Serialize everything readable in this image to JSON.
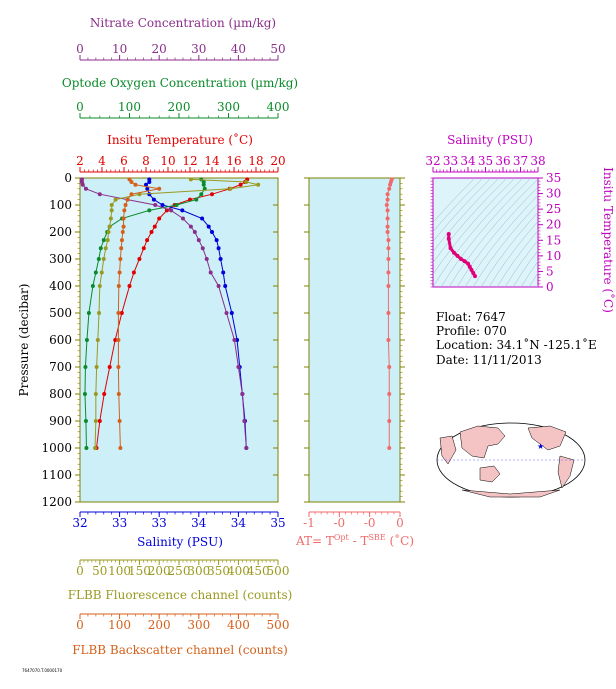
{
  "colors": {
    "nitrate": "#8b2e8b",
    "oxygen": "#0a8a2a",
    "temperature": "#e00000",
    "salinity": "#0000dd",
    "fluorescence": "#9a9a20",
    "backscatter": "#d4601a",
    "at": "#f06a6a",
    "ts": "#c000c0",
    "panel_bg": "#cdeff7",
    "panel_border": "#808000",
    "ts_bg": "#dcf4fa"
  },
  "axes": {
    "nitrate": {
      "title": "Nitrate Concentration (µm/kg)",
      "ticks": [
        "0",
        "10",
        "20",
        "30",
        "40",
        "50"
      ],
      "range": [
        0,
        50
      ]
    },
    "oxygen": {
      "title": "Optode Oxygen Concentration (µm/kg)",
      "ticks": [
        "0",
        "100",
        "200",
        "300",
        "400"
      ],
      "range": [
        0,
        400
      ]
    },
    "temperature": {
      "title": "Insitu Temperature (˚C)",
      "ticks": [
        "2",
        "4",
        "6",
        "8",
        "10",
        "12",
        "14",
        "16",
        "18",
        "20"
      ],
      "range": [
        2,
        20
      ]
    },
    "salinity": {
      "title": "Salinity (PSU)",
      "ticks": [
        "32",
        "33",
        "33",
        "34",
        "34",
        "35"
      ],
      "range": [
        32,
        35
      ]
    },
    "pressure": {
      "title": "Pressure (decibar)",
      "ticks": [
        "0",
        "100",
        "200",
        "300",
        "400",
        "500",
        "600",
        "700",
        "800",
        "900",
        "1000",
        "1100",
        "1200"
      ],
      "range": [
        0,
        1200
      ]
    },
    "fluorescence": {
      "title": "FLBB Fluorescence channel (counts)",
      "ticks": [
        "0",
        "50",
        "100",
        "150",
        "200",
        "250",
        "300",
        "350",
        "400",
        "450",
        "500"
      ],
      "range": [
        0,
        500
      ]
    },
    "backscatter": {
      "title": "FLBB Backscatter channel (counts)",
      "ticks": [
        "0",
        "100",
        "200",
        "300",
        "400",
        "500"
      ],
      "range": [
        0,
        500
      ]
    },
    "at": {
      "ticks": [
        "-1",
        "-0",
        "-0",
        "0"
      ],
      "title_pre": "AT= T",
      "title_sup1": "Opt",
      "title_mid": " - T",
      "title_sup2": "SBE",
      "title_post": " (˚C)"
    },
    "ts_salinity": {
      "title": "Salinity (PSU)",
      "ticks": [
        "32",
        "33",
        "34",
        "35",
        "36",
        "37",
        "38"
      ],
      "range": [
        32,
        38
      ]
    },
    "ts_temperature": {
      "title": "Insitu Temperature (˚C)",
      "ticks": [
        "0",
        "5",
        "10",
        "15",
        "20",
        "25",
        "30",
        "35"
      ],
      "range": [
        0,
        35
      ]
    }
  },
  "info": {
    "float": "Float:  7647",
    "profile": "Profile:  070",
    "location": "Location:  34.1˚N  -125.1˚E",
    "date": "Date:  11/11/2013"
  },
  "footer_code": "7647070.T.0000170",
  "chart_data": [
    {
      "type": "line",
      "title": "",
      "ylabel": "Pressure (decibar)",
      "ylim": [
        1200,
        0
      ],
      "pressure": [
        5,
        15,
        25,
        40,
        60,
        80,
        100,
        120,
        150,
        180,
        200,
        230,
        260,
        300,
        350,
        400,
        500,
        600,
        700,
        800,
        900,
        1000
      ],
      "series": [
        {
          "name": "Insitu Temperature (˚C)",
          "xlim": [
            2,
            20
          ],
          "values": [
            17.2,
            17.0,
            16.6,
            15.6,
            14.0,
            12.0,
            10.6,
            9.9,
            9.2,
            8.8,
            8.5,
            8.1,
            7.8,
            7.4,
            6.9,
            6.5,
            5.8,
            5.2,
            4.7,
            4.2,
            3.8,
            3.5
          ]
        },
        {
          "name": "Salinity (PSU)",
          "xlim": [
            32,
            35
          ],
          "values": [
            33.05,
            33.05,
            33.0,
            33.02,
            33.05,
            33.12,
            33.25,
            33.55,
            33.85,
            33.95,
            34.0,
            34.07,
            34.1,
            34.13,
            34.17,
            34.2,
            34.3,
            34.38,
            34.42,
            34.46,
            34.5,
            34.52
          ]
        },
        {
          "name": "Optode Oxygen Concentration (µm/kg)",
          "xlim": [
            0,
            400
          ],
          "values": [
            245,
            250,
            250,
            252,
            245,
            235,
            195,
            140,
            85,
            60,
            55,
            48,
            42,
            38,
            32,
            26,
            18,
            14,
            11,
            10,
            12,
            13
          ]
        },
        {
          "name": "Nitrate Concentration (µm/kg)",
          "xlim": [
            0,
            50
          ],
          "values": [
            0.5,
            0.5,
            0.7,
            1.5,
            5,
            12,
            19,
            23,
            26,
            28,
            29,
            30,
            31,
            32,
            33,
            35,
            37,
            39,
            40,
            41,
            41.5,
            42
          ]
        },
        {
          "name": "FLBB Fluorescence channel (counts)",
          "xlim": [
            0,
            500
          ],
          "values": [
            280,
            420,
            450,
            380,
            150,
            90,
            80,
            80,
            78,
            75,
            72,
            70,
            65,
            60,
            55,
            50,
            48,
            45,
            42,
            40,
            40,
            38
          ]
        },
        {
          "name": "FLBB Backscatter channel (counts)",
          "xlim": [
            0,
            500
          ],
          "values": [
            125,
            130,
            140,
            200,
            130,
            120,
            115,
            112,
            110,
            110,
            108,
            106,
            104,
            102,
            100,
            98,
            97,
            97,
            97,
            98,
            100,
            102
          ]
        }
      ]
    },
    {
      "type": "line",
      "ylabel": "Pressure (decibar)",
      "xlabel": "AT= TOpt - TSBE (˚C)",
      "xlim": [
        -1,
        0.1
      ],
      "ylim": [
        1200,
        0
      ],
      "pressure": [
        5,
        15,
        25,
        40,
        60,
        80,
        100,
        120,
        150,
        180,
        200,
        230,
        260,
        300,
        350,
        400,
        500,
        600,
        700,
        800,
        900,
        1000
      ],
      "values": [
        0.0,
        -0.01,
        -0.02,
        -0.03,
        -0.05,
        -0.05,
        -0.06,
        -0.05,
        -0.05,
        -0.05,
        -0.05,
        -0.04,
        -0.04,
        -0.04,
        -0.04,
        -0.04,
        -0.04,
        -0.04,
        -0.03,
        -0.03,
        -0.03,
        -0.03
      ]
    },
    {
      "type": "line",
      "xlabel": "Salinity (PSU)",
      "ylabel": "Insitu Temperature (˚C)",
      "xlim": [
        32,
        38
      ],
      "ylim": [
        0,
        35
      ],
      "salinity": [
        32.9,
        32.9,
        33.0,
        33.2,
        33.4,
        33.6,
        33.8,
        34.0,
        34.1,
        34.2,
        34.3,
        34.4
      ],
      "temperature": [
        17.0,
        15.5,
        12.5,
        11.0,
        10.0,
        9.0,
        8.3,
        7.5,
        6.5,
        5.5,
        4.5,
        3.5
      ]
    }
  ]
}
